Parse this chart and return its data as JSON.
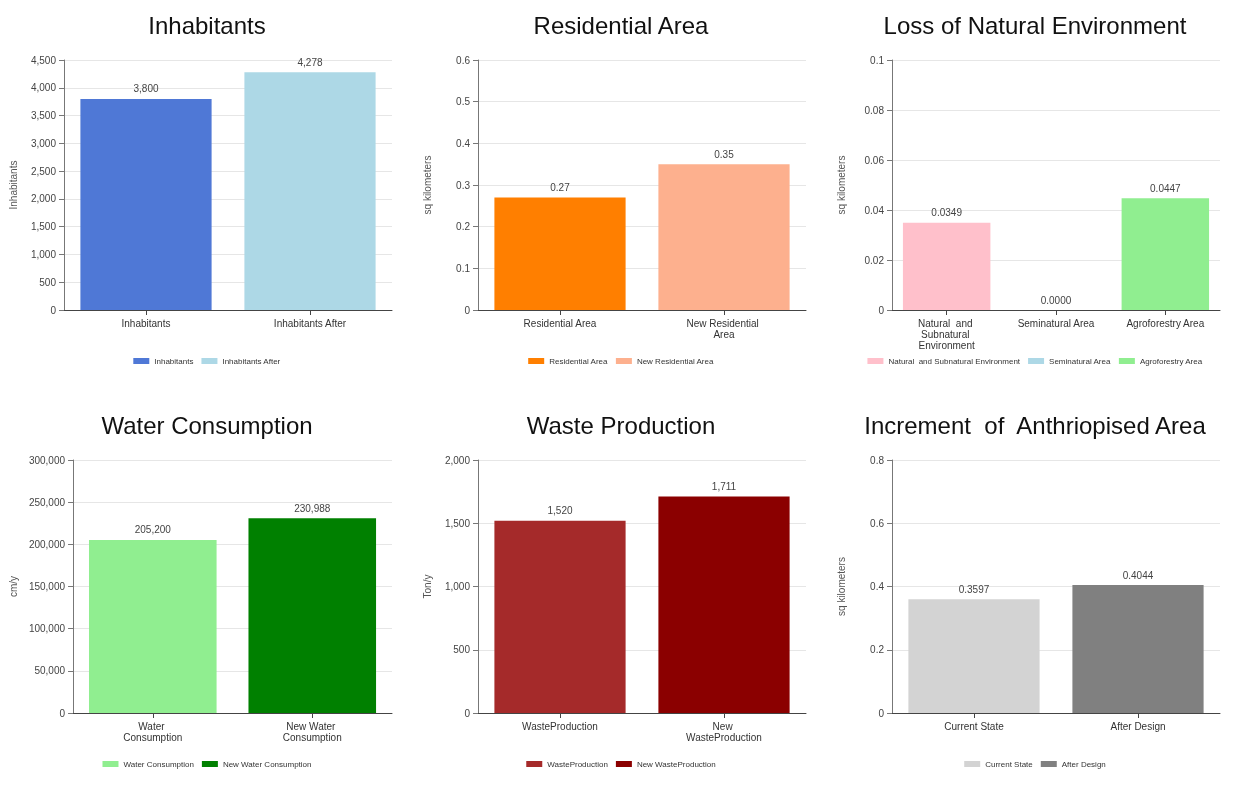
{
  "chart_data": [
    {
      "type": "bar",
      "title": "Inhabitants",
      "ylabel": "Inhabitants",
      "categories": [
        "Inhabitants",
        "Inhabitants After"
      ],
      "series": [
        {
          "name": "Inhabitants",
          "color": "#4f78d6",
          "values": [
            3800,
            null
          ],
          "value_labels": [
            "3,800",
            null
          ]
        },
        {
          "name": "Inhabitants After",
          "color": "#add8e6",
          "values": [
            null,
            4278
          ],
          "value_labels": [
            null,
            "4,278"
          ]
        }
      ],
      "ylim": [
        0,
        4500
      ],
      "yticks": [
        0,
        500,
        {
          "value": 1000,
          "label": "1,000"
        },
        {
          "value": 1500,
          "label": "1,500"
        },
        {
          "value": 2000,
          "label": "2,000"
        },
        {
          "value": 2500,
          "label": "2,500"
        },
        {
          "value": 3000,
          "label": "3,000"
        },
        {
          "value": 3500,
          "label": "3,500"
        },
        {
          "value": 4000,
          "label": "4,000"
        },
        {
          "value": 4500,
          "label": "4,500"
        }
      ],
      "grid": "y",
      "legend": "bottom"
    },
    {
      "type": "bar",
      "title": "Residential Area",
      "ylabel": "sq kilometers",
      "categories": [
        "Residential Area",
        "New Residential Area"
      ],
      "series": [
        {
          "name": "Residential Area",
          "color": "#ff7f00",
          "values": [
            0.27,
            null
          ],
          "value_labels": [
            "0.27",
            null
          ]
        },
        {
          "name": "New Residential Area",
          "color": "#fdb08e",
          "values": [
            null,
            0.35
          ],
          "value_labels": [
            null,
            "0.35"
          ]
        }
      ],
      "ylim": [
        0,
        0.6
      ],
      "yticks": [
        0,
        0.1,
        0.2,
        0.3,
        0.4,
        0.5,
        0.6
      ],
      "grid": "y",
      "legend": "bottom"
    },
    {
      "type": "bar",
      "title": "Loss of Natural Environment",
      "ylabel": "sq kilometers",
      "categories": [
        "Natural  and Subnatural Environment",
        "Seminatural Area",
        "Agroforestry Area"
      ],
      "series": [
        {
          "name": "Natural  and Subnatural Environment",
          "color": "#ffc0cb",
          "values": [
            0.0349,
            null,
            null
          ],
          "value_labels": [
            "0.0349",
            null,
            null
          ]
        },
        {
          "name": "Seminatural Area",
          "color": "#add8e6",
          "values": [
            null,
            0,
            null
          ],
          "value_labels": [
            null,
            "0.0000",
            null
          ]
        },
        {
          "name": "Agroforestry Area",
          "color": "#90ee90",
          "values": [
            null,
            null,
            0.0447
          ],
          "value_labels": [
            null,
            null,
            "0.0447"
          ]
        }
      ],
      "ylim": [
        0,
        0.1
      ],
      "yticks": [
        0,
        0.02,
        0.04,
        0.06,
        0.08,
        0.1
      ],
      "grid": "y",
      "legend": "bottom"
    },
    {
      "type": "bar",
      "title": "Water Consumption",
      "ylabel": "cm/y",
      "categories": [
        "Water Consumption",
        "New Water Consumption"
      ],
      "series": [
        {
          "name": "Water Consumption",
          "color": "#90ee90",
          "values": [
            205200,
            null
          ],
          "value_labels": [
            "205,200",
            null
          ]
        },
        {
          "name": "New Water Consumption",
          "color": "#008000",
          "values": [
            null,
            230988
          ],
          "value_labels": [
            null,
            "230,988"
          ]
        }
      ],
      "ylim": [
        0,
        300000
      ],
      "yticks": [
        0,
        {
          "value": 50000,
          "label": "50,000"
        },
        {
          "value": 100000,
          "label": "100,000"
        },
        {
          "value": 150000,
          "label": "150,000"
        },
        {
          "value": 200000,
          "label": "200,000"
        },
        {
          "value": 250000,
          "label": "250,000"
        },
        {
          "value": 300000,
          "label": "300,000"
        }
      ],
      "grid": "y",
      "legend": "bottom"
    },
    {
      "type": "bar",
      "title": "Waste Production",
      "ylabel": "Ton/y",
      "categories": [
        "WasteProduction",
        "New WasteProduction"
      ],
      "series": [
        {
          "name": "WasteProduction",
          "color": "#a52a2a",
          "values": [
            1520,
            null
          ],
          "value_labels": [
            "1,520",
            null
          ]
        },
        {
          "name": "New WasteProduction",
          "color": "#8b0000",
          "values": [
            null,
            1711
          ],
          "value_labels": [
            null,
            "1,711"
          ]
        }
      ],
      "ylim": [
        0,
        2000
      ],
      "yticks": [
        0,
        500,
        {
          "value": 1000,
          "label": "1,000"
        },
        {
          "value": 1500,
          "label": "1,500"
        },
        {
          "value": 2000,
          "label": "2,000"
        }
      ],
      "grid": "y",
      "legend": "bottom"
    },
    {
      "type": "bar",
      "title": "Increment  of  Anthriopised Area",
      "ylabel": "sq kilometers",
      "categories": [
        "Current State",
        "After Design"
      ],
      "series": [
        {
          "name": "Current State",
          "color": "#d3d3d3",
          "values": [
            0.3597,
            null
          ],
          "value_labels": [
            "0.3597",
            null
          ]
        },
        {
          "name": "After Design",
          "color": "#808080",
          "values": [
            null,
            0.4044
          ],
          "value_labels": [
            null,
            "0.4044"
          ]
        }
      ],
      "ylim": [
        0,
        0.8
      ],
      "yticks": [
        0,
        0.2,
        0.4,
        0.6,
        0.8
      ],
      "grid": "y",
      "legend": "bottom"
    }
  ]
}
